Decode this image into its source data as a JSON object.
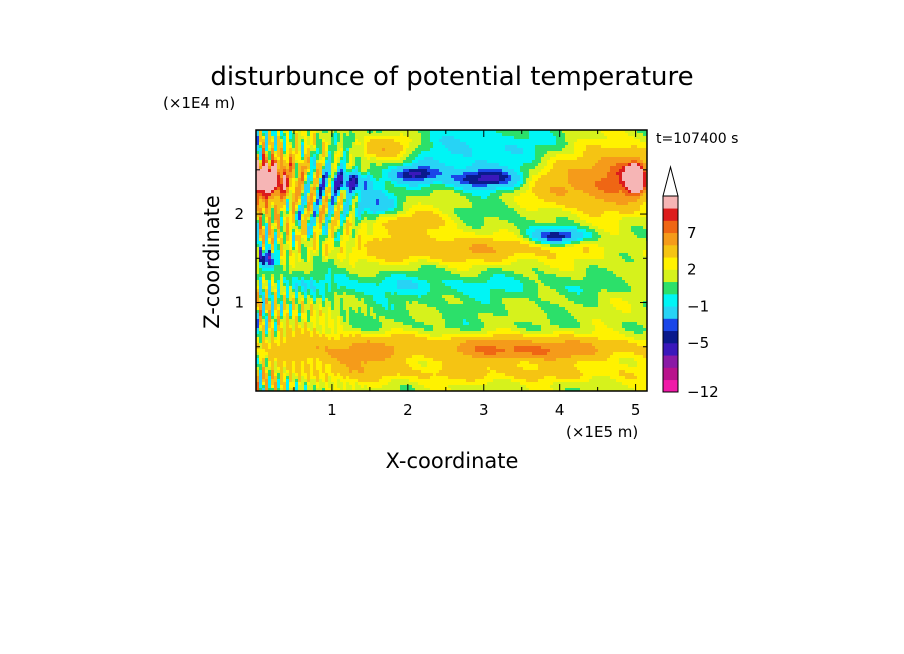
{
  "chart_data": {
    "type": "heatmap",
    "title": "disturbunce of potential temperature",
    "xlabel": "X-coordinate",
    "ylabel": "Z-coordinate",
    "x_unit": "(×1E5 m)",
    "y_unit": "(×1E4 m)",
    "annotation": "t=107400 s",
    "xlim": [
      0,
      5.15
    ],
    "ylim": [
      0,
      2.95
    ],
    "x_ticks": [
      1,
      2,
      3,
      4,
      5
    ],
    "y_ticks": [
      1,
      2
    ],
    "colorbar": {
      "levels": [
        -12,
        -11,
        -9,
        -7,
        -5,
        -4,
        -3,
        -1,
        0,
        1,
        2,
        3,
        5,
        7,
        8,
        9
      ],
      "labels": [
        {
          "text": "7",
          "value": 7
        },
        {
          "text": "2",
          "value": 2
        },
        {
          "text": "−1",
          "value": -1
        },
        {
          "text": "−5",
          "value": -5
        },
        {
          "text": "−12",
          "value": -12
        }
      ],
      "colors": [
        "#f01aa8",
        "#b8128c",
        "#8a1aa6",
        "#3a18bb",
        "#0a1a8c",
        "#1a46e8",
        "#27d3f5",
        "#00f5f5",
        "#2ce06a",
        "#d6f21c",
        "#fff200",
        "#f5c413",
        "#f59b1a",
        "#ef6614",
        "#dc1c1c",
        "#f6b5b5"
      ],
      "extend_top": true
    },
    "features": [
      {
        "x": 0.8,
        "z": 1.2,
        "sx": 4.6,
        "sz": 0.12,
        "v": -1.5
      },
      {
        "x": 2.2,
        "z": 1.05,
        "sx": 1.8,
        "sz": 0.35,
        "v": -0.8
      },
      {
        "x": 2.6,
        "z": 1.6,
        "sx": 1.5,
        "sz": 0.14,
        "v": 3.5
      },
      {
        "x": 2.0,
        "z": 1.9,
        "sx": 0.7,
        "sz": 0.15,
        "v": 2.5
      },
      {
        "x": 2.9,
        "z": 0.5,
        "sx": 2.4,
        "sz": 0.15,
        "v": 2.8
      },
      {
        "x": 3.6,
        "z": 0.45,
        "sx": 1.0,
        "sz": 0.12,
        "v": 3.8
      },
      {
        "x": 3.0,
        "z": 0.2,
        "sx": 2.5,
        "sz": 0.1,
        "v": 2.0
      },
      {
        "x": 2.9,
        "z": 0.72,
        "sx": 2.2,
        "sz": 0.08,
        "v": -0.6
      },
      {
        "x": 1.2,
        "z": 2.35,
        "sx": 0.35,
        "sz": 0.12,
        "v": -6
      },
      {
        "x": 1.55,
        "z": 2.1,
        "sx": 0.3,
        "sz": 0.15,
        "v": -4
      },
      {
        "x": 2.1,
        "z": 2.45,
        "sx": 0.3,
        "sz": 0.1,
        "v": -5.5
      },
      {
        "x": 3.0,
        "z": 2.4,
        "sx": 0.5,
        "sz": 0.12,
        "v": -6.5
      },
      {
        "x": 4.0,
        "z": 1.75,
        "sx": 0.38,
        "sz": 0.09,
        "v": -6.5
      },
      {
        "x": 3.6,
        "z": 2.0,
        "sx": 1.0,
        "sz": 0.2,
        "v": -1.5
      },
      {
        "x": 2.2,
        "z": 2.7,
        "sx": 1.3,
        "sz": 0.35,
        "v": -1.5
      },
      {
        "x": 3.3,
        "z": 2.75,
        "sx": 0.9,
        "sz": 0.3,
        "v": -1.8
      },
      {
        "x": 4.2,
        "z": 2.3,
        "sx": 0.7,
        "sz": 0.35,
        "v": 4
      },
      {
        "x": 4.8,
        "z": 2.45,
        "sx": 0.4,
        "sz": 0.3,
        "v": 5
      },
      {
        "x": 5.0,
        "z": 2.4,
        "sx": 0.12,
        "sz": 0.18,
        "v": 9
      },
      {
        "x": 1.7,
        "z": 2.75,
        "sx": 0.4,
        "sz": 0.15,
        "v": 4
      },
      {
        "x": 0.3,
        "z": 2.35,
        "sx": 0.5,
        "sz": 0.3,
        "v": 5
      },
      {
        "x": 0.1,
        "z": 2.4,
        "sx": 0.25,
        "sz": 0.2,
        "v": 8
      },
      {
        "x": 0.25,
        "z": 1.85,
        "sx": 0.4,
        "sz": 0.25,
        "v": 3
      },
      {
        "x": 0.15,
        "z": 1.5,
        "sx": 0.12,
        "sz": 0.12,
        "v": -7
      },
      {
        "x": 0.5,
        "z": 2.0,
        "sx": 0.5,
        "sz": 0.5,
        "v": -2
      },
      {
        "x": 0.4,
        "z": 0.65,
        "sx": 0.4,
        "sz": 0.5,
        "v": 1.5
      },
      {
        "x": 1.3,
        "z": 0.4,
        "sx": 0.5,
        "sz": 0.2,
        "v": 3.5
      }
    ]
  }
}
